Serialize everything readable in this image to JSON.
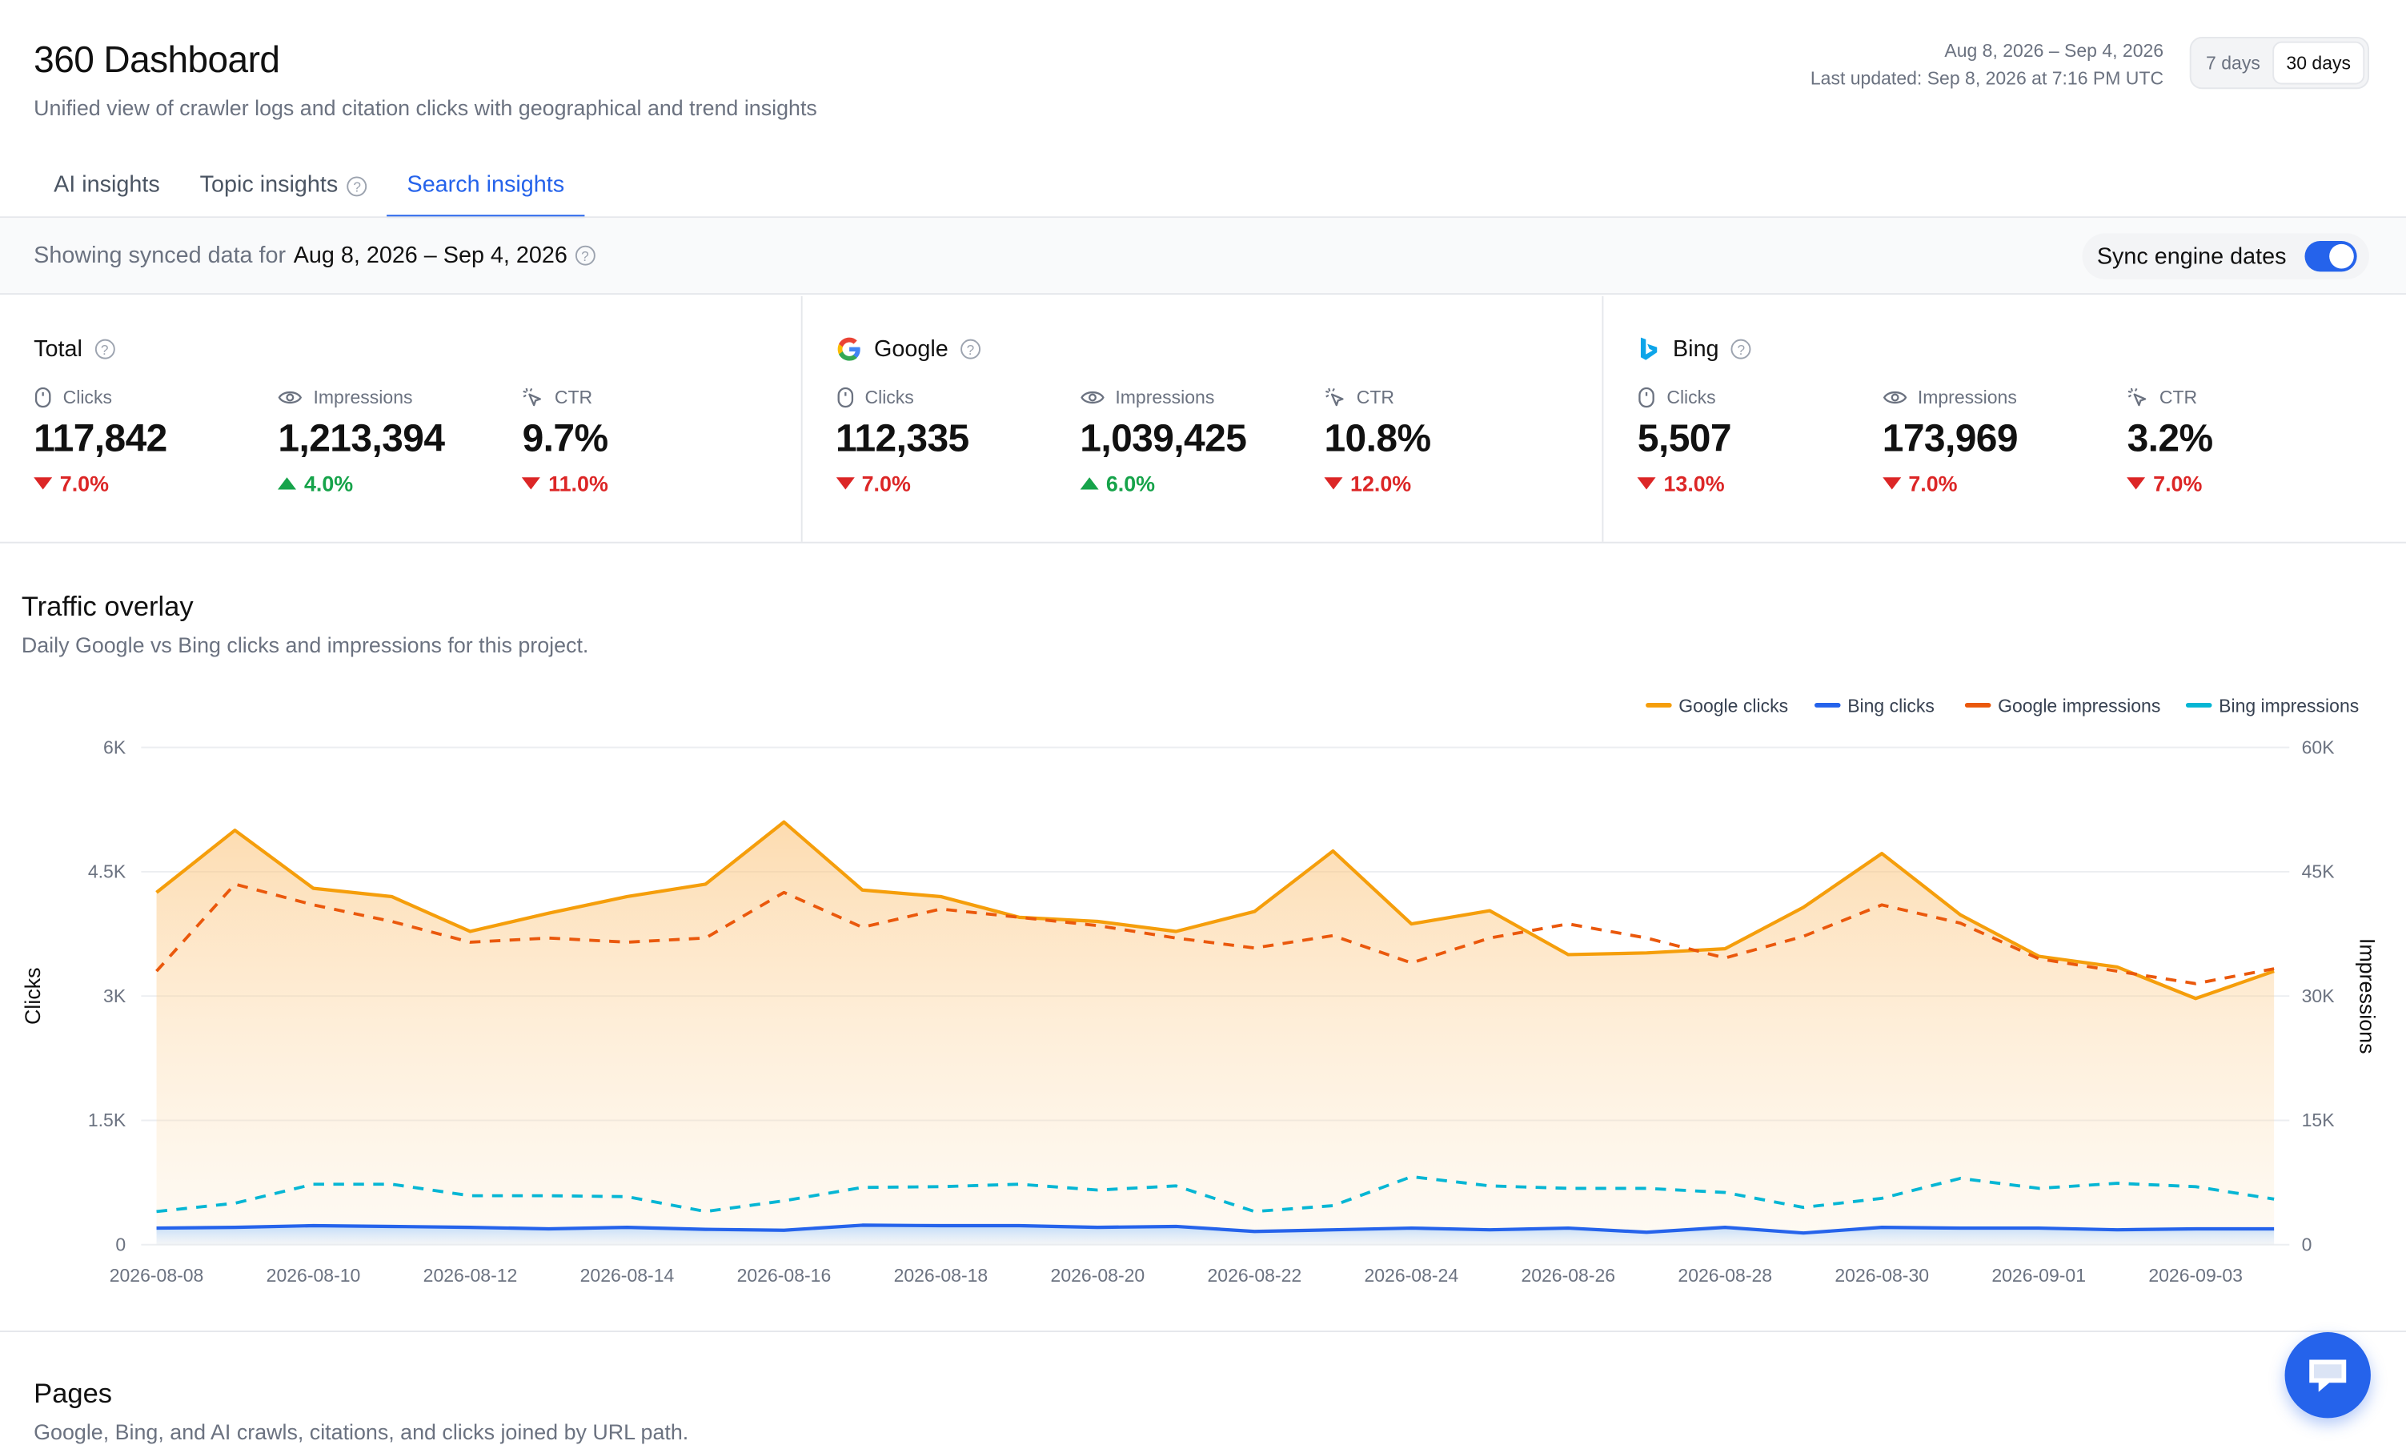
{
  "header": {
    "title": "360 Dashboard",
    "subtitle": "Unified view of crawler logs and citation clicks with geographical and trend insights",
    "date_range": "Aug 8, 2026 – Sep 4, 2026",
    "last_updated": "Last updated: Sep 8, 2026 at 7:16 PM UTC",
    "range_options": [
      {
        "label": "7 days",
        "active": false
      },
      {
        "label": "30 days",
        "active": true
      }
    ]
  },
  "tabs": [
    {
      "label": "AI insights",
      "active": false,
      "help": false
    },
    {
      "label": "Topic insights",
      "active": false,
      "help": true
    },
    {
      "label": "Search insights",
      "active": true,
      "help": false
    }
  ],
  "sync": {
    "prefix": "Showing synced data for",
    "range": "Aug 8, 2026 – Sep 4, 2026",
    "toggle_label": "Sync engine dates",
    "toggle_on": true
  },
  "panels": [
    {
      "name": "Total",
      "logo": "none",
      "metrics": [
        {
          "label": "Clicks",
          "icon": "mouse-icon",
          "value": "117,842",
          "delta": "7.0%",
          "direction": "down"
        },
        {
          "label": "Impressions",
          "icon": "eye-icon",
          "value": "1,213,394",
          "delta": "4.0%",
          "direction": "up"
        },
        {
          "label": "CTR",
          "icon": "cursor-click-icon",
          "value": "9.7%",
          "delta": "11.0%",
          "direction": "down"
        }
      ]
    },
    {
      "name": "Google",
      "logo": "google-logo",
      "metrics": [
        {
          "label": "Clicks",
          "icon": "mouse-icon",
          "value": "112,335",
          "delta": "7.0%",
          "direction": "down"
        },
        {
          "label": "Impressions",
          "icon": "eye-icon",
          "value": "1,039,425",
          "delta": "6.0%",
          "direction": "up"
        },
        {
          "label": "CTR",
          "icon": "cursor-click-icon",
          "value": "10.8%",
          "delta": "12.0%",
          "direction": "down"
        }
      ]
    },
    {
      "name": "Bing",
      "logo": "bing-logo",
      "metrics": [
        {
          "label": "Clicks",
          "icon": "mouse-icon",
          "value": "5,507",
          "delta": "13.0%",
          "direction": "down"
        },
        {
          "label": "Impressions",
          "icon": "eye-icon",
          "value": "173,969",
          "delta": "7.0%",
          "direction": "down"
        },
        {
          "label": "CTR",
          "icon": "cursor-click-icon",
          "value": "3.2%",
          "delta": "7.0%",
          "direction": "down"
        }
      ]
    }
  ],
  "traffic": {
    "title": "Traffic overlay",
    "subtitle": "Daily Google vs Bing clicks and impressions for this project."
  },
  "chart_data": {
    "type": "line",
    "x": [
      "2026-08-08",
      "2026-08-09",
      "2026-08-10",
      "2026-08-11",
      "2026-08-12",
      "2026-08-13",
      "2026-08-14",
      "2026-08-15",
      "2026-08-16",
      "2026-08-17",
      "2026-08-18",
      "2026-08-19",
      "2026-08-20",
      "2026-08-21",
      "2026-08-22",
      "2026-08-23",
      "2026-08-24",
      "2026-08-25",
      "2026-08-26",
      "2026-08-27",
      "2026-08-28",
      "2026-08-29",
      "2026-08-30",
      "2026-08-31",
      "2026-09-01",
      "2026-09-02",
      "2026-09-03",
      "2026-09-04"
    ],
    "x_tick_labels": [
      "2026-08-08",
      "2026-08-10",
      "2026-08-12",
      "2026-08-14",
      "2026-08-16",
      "2026-08-18",
      "2026-08-20",
      "2026-08-22",
      "2026-08-24",
      "2026-08-26",
      "2026-08-28",
      "2026-08-30",
      "2026-09-01",
      "2026-09-03"
    ],
    "ylabel": "Clicks",
    "y2label": "Impressions",
    "ylim": [
      0,
      6000
    ],
    "y2lim": [
      0,
      60000
    ],
    "y_ticks": [
      "0",
      "1.5K",
      "3K",
      "4.5K",
      "6K"
    ],
    "y2_ticks": [
      "0",
      "15K",
      "30K",
      "45K",
      "60K"
    ],
    "grid": true,
    "legend_position": "top-right",
    "series": [
      {
        "name": "Google clicks",
        "axis": "left",
        "style": "solid-area",
        "color": "#f59e0b",
        "values": [
          4250,
          5000,
          4300,
          4200,
          3780,
          4000,
          4200,
          4350,
          5100,
          4280,
          4200,
          3950,
          3900,
          3780,
          4020,
          4750,
          3870,
          4030,
          3500,
          3520,
          3570,
          4070,
          4720,
          3980,
          3480,
          3350,
          2970,
          3300
        ]
      },
      {
        "name": "Bing clicks",
        "axis": "left",
        "style": "solid-area",
        "color": "#2563eb",
        "values": [
          200,
          210,
          230,
          220,
          210,
          190,
          210,
          185,
          175,
          235,
          230,
          230,
          210,
          220,
          160,
          180,
          200,
          180,
          200,
          150,
          210,
          140,
          210,
          200,
          200,
          180,
          190,
          190
        ]
      },
      {
        "name": "Google impressions",
        "axis": "right",
        "style": "dashed",
        "color": "#ea580c",
        "values": [
          33000,
          43500,
          41000,
          39000,
          36500,
          37000,
          36500,
          37000,
          42500,
          38300,
          40500,
          39500,
          38500,
          37000,
          35800,
          37300,
          34000,
          37000,
          38700,
          37000,
          34600,
          37200,
          41000,
          38800,
          34500,
          33000,
          31500,
          33300
        ]
      },
      {
        "name": "Bing impressions",
        "axis": "right",
        "style": "dashed",
        "color": "#06b6d4",
        "values": [
          4000,
          5000,
          7300,
          7300,
          5900,
          5900,
          5800,
          4000,
          5300,
          6900,
          7000,
          7300,
          6600,
          7100,
          4000,
          4700,
          8200,
          7100,
          6800,
          6800,
          6300,
          4500,
          5600,
          8000,
          6800,
          7400,
          7000,
          5500
        ]
      }
    ]
  },
  "pages": {
    "title": "Pages",
    "subtitle": "Google, Bing, and AI crawls, citations, and clicks joined by URL path."
  },
  "colors": {
    "accent": "#2563eb",
    "down": "#dc2626",
    "up": "#16a34a"
  }
}
